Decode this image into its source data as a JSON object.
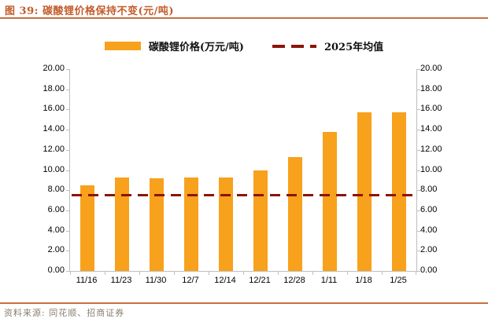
{
  "header": {
    "title": "图 39: 碳酸锂价格保持不变(元/吨)"
  },
  "legend": {
    "bar_label": "碳酸锂价格(万元/吨)",
    "line_label": "2025年均值"
  },
  "footer": {
    "source": "资料来源: 同花顺、招商证券"
  },
  "colors": {
    "bar": "#F7A11C",
    "mean_line": "#8B1508",
    "title_text": "#C25B2B",
    "rule": "#C7703F",
    "axis": "#BFBFBF",
    "footer_text": "#8A7E6E"
  },
  "chart_data": {
    "type": "bar",
    "title": "碳酸锂价格保持不变(元/吨)",
    "categories": [
      "11/16",
      "11/23",
      "11/30",
      "12/7",
      "12/14",
      "12/21",
      "12/28",
      "1/11",
      "1/18",
      "1/25"
    ],
    "series": [
      {
        "name": "碳酸锂价格(万元/吨)",
        "type": "bar",
        "color": "#F7A11C",
        "values": [
          8.5,
          9.3,
          9.2,
          9.3,
          9.3,
          10.0,
          11.3,
          13.8,
          15.7,
          15.7
        ]
      },
      {
        "name": "2025年均值",
        "type": "dashed-line",
        "color": "#8B1508",
        "value": 7.5
      }
    ],
    "xlabel": "",
    "ylabel": "",
    "ylim": [
      0,
      20
    ],
    "ytick_step": 2,
    "ytick_labels": [
      "0.00",
      "2.00",
      "4.00",
      "6.00",
      "8.00",
      "10.00",
      "12.00",
      "14.00",
      "16.00",
      "18.00",
      "20.00"
    ],
    "dual_axis": true,
    "grid": false,
    "legend_position": "top"
  }
}
